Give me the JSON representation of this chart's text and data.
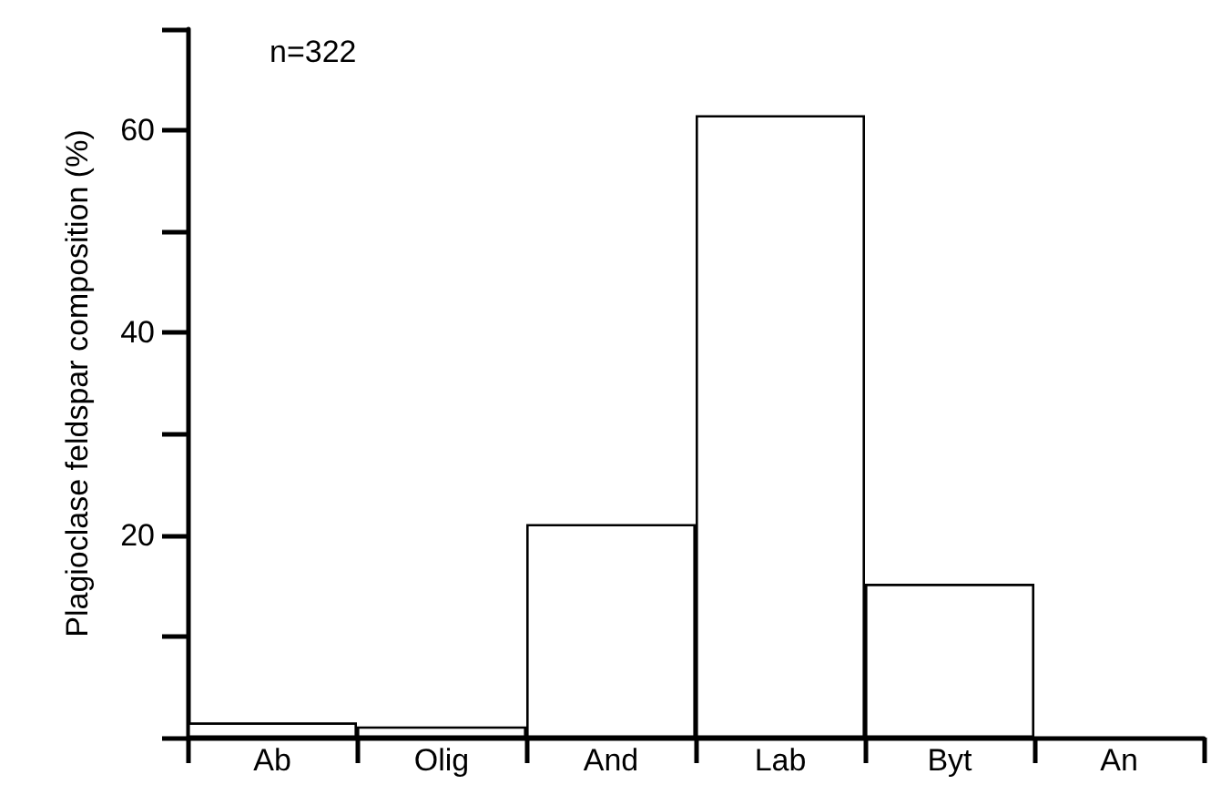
{
  "chart_data": {
    "type": "bar",
    "ylabel": "Plagioclase feldspar composition (%)",
    "categories": [
      "Ab",
      "Olig",
      "And",
      "Lab",
      "Byt",
      "An"
    ],
    "values": [
      1.5,
      1.1,
      21.1,
      61.5,
      15.2,
      0
    ],
    "color": "#ffffff",
    "ylim": [
      0,
      70
    ],
    "yticks": [
      {
        "value": 0,
        "label": null
      },
      {
        "value": 10,
        "label": null
      },
      20,
      {
        "value": 30,
        "label": null
      },
      40,
      {
        "value": 50,
        "label": null
      },
      60,
      {
        "value": 70,
        "label": null
      }
    ],
    "annotations": [
      "n=322"
    ],
    "grid": false
  }
}
